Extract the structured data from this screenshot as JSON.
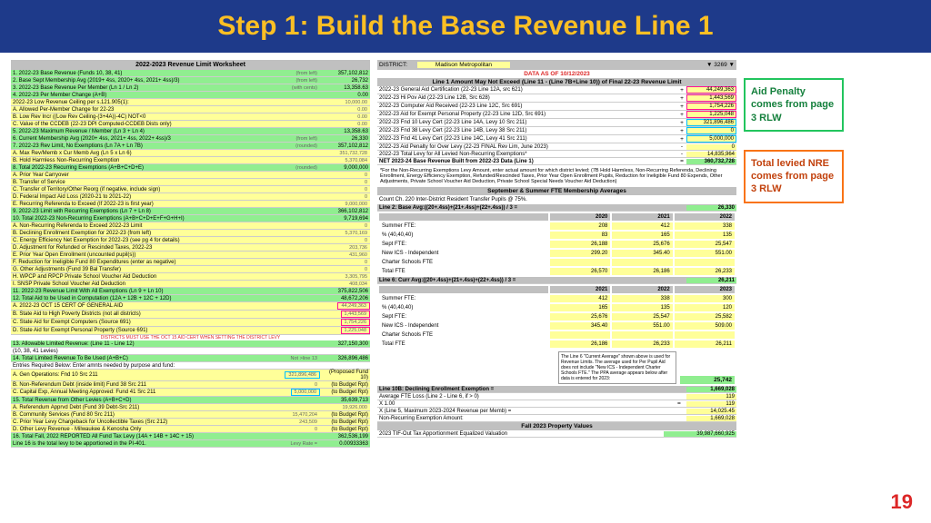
{
  "header": "Step 1: Build the Base Revenue  Line 1",
  "page_num": "19",
  "left": {
    "title": "2022-2023 Revenue Limit Worksheet",
    "rows": [
      {
        "n": "1.",
        "lbl": "2022-23 Base Revenue (Funds 10, 38, 41)",
        "note": "(from left)",
        "val": "357,102,812",
        "bg": "grn"
      },
      {
        "n": "2.",
        "lbl": "Base Sept Membership Avg  (2019+ 4ss, 2020+ 4ss, 2021+ 4ss)/3)",
        "note": "(from left)",
        "val": "26,732",
        "bg": "grn"
      },
      {
        "n": "3.",
        "lbl": "2022-23 Base Revenue Per Member (Ln 1 / Ln 2)",
        "note": "(with cents)",
        "val": "13,358.63",
        "bg": "grn"
      },
      {
        "n": "4.",
        "lbl": "2022-23 Per Member Change   (A+B)",
        "note": "",
        "val": "0.00",
        "bg": "grn"
      },
      {
        "n": "",
        "lbl": "      2022-23 Low Revenue Ceiling per s.121.905(1):",
        "note": "10,000.00",
        "val": "",
        "bg": "ylw"
      },
      {
        "n": "",
        "lbl": "A. Allowed Per-Member Change for 22-23",
        "note": "0.00",
        "val": "",
        "bg": "ylw"
      },
      {
        "n": "",
        "lbl": "B. Low Rev Incr ((Low Rev Ceiling-(3+4A))-4C) NOT<0",
        "note": "0.00",
        "val": "",
        "bg": "ylw"
      },
      {
        "n": "",
        "lbl": "C. Value of the CCDEB (22-23 DPI Computed-CCDEB Dists only)",
        "note": "0.00",
        "val": "",
        "bg": "ylw"
      },
      {
        "n": "5.",
        "lbl": "2022-23 Maximum Revenue / Member (Ln 3 + Ln 4)",
        "note": "",
        "val": "13,358.63",
        "bg": "grn"
      },
      {
        "n": "6.",
        "lbl": "Current Membership Avg  (2020+ 4ss, 2021+ 4ss, 2022+ 4ss)/3",
        "note": "(from left)",
        "val": "26,330",
        "bg": "grn"
      },
      {
        "n": "7.",
        "lbl": "2022-23 Rev Limit, No Exemptions (Ln 7A + Ln 7B)",
        "note": "(rounded)",
        "val": "357,102,812",
        "bg": "grn"
      },
      {
        "n": "",
        "lbl": "A. Max Rev/Memb x Cur Memb Avg (Ln 5 x Ln 6)",
        "note": "351,732,728",
        "val": "",
        "bg": "ylw"
      },
      {
        "n": "",
        "lbl": "B. Hold Harmless Non-Recurring Exemption",
        "note": "5,370,084",
        "val": "",
        "bg": "ylw"
      },
      {
        "n": "8.",
        "lbl": "Total 2022-23 Recurring Exemptions  (A+B+C+D+E)",
        "note": "(rounded)",
        "val": "9,000,000",
        "bg": "grn"
      },
      {
        "n": "",
        "lbl": "A. Prior Year Carryover",
        "note": "0",
        "val": "",
        "bg": "ylw"
      },
      {
        "n": "",
        "lbl": "B. Transfer of Service",
        "note": "0",
        "val": "",
        "bg": "ylw"
      },
      {
        "n": "",
        "lbl": "C. Transfer of Territory/Other Reorg   (if negative, include sign)",
        "note": "0",
        "val": "",
        "bg": "ylw"
      },
      {
        "n": "",
        "lbl": "D. Federal Impact Aid Loss   (2020-21 to 2021-22)",
        "note": "0",
        "val": "",
        "bg": "ylw"
      },
      {
        "n": "",
        "lbl": "E. Recurring Referenda to Exceed  (If 2022-23 is first year)",
        "note": "9,000,000",
        "val": "",
        "bg": "ylw"
      },
      {
        "n": "9.",
        "lbl": "2022-23 Limit with Recurring Exemptions   (Ln 7 + Ln 8)",
        "note": "",
        "val": "366,102,812",
        "bg": "grn"
      },
      {
        "n": "10.",
        "lbl": "Total 2022-23 Non-Recurring Exemptions  (A+B+C+D+E+F+G+H+I)",
        "note": "",
        "val": "9,719,694",
        "bg": "grn"
      },
      {
        "n": "",
        "lbl": "A. Non-Recurring Referenda to Exceed 2022-23 Limit",
        "note": "0",
        "val": "",
        "bg": "ylw"
      },
      {
        "n": "",
        "lbl": "B. Declining Enrollment Exemption for 2022-23 (from left)",
        "note": "5,370,169",
        "val": "",
        "bg": "ylw"
      },
      {
        "n": "",
        "lbl": "C. Energy Efficiency Net Exemption for 2022-23 (see pg 4 for details)",
        "note": "0",
        "val": "",
        "bg": "ylw"
      },
      {
        "n": "",
        "lbl": "D. Adjustment for Refunded or Rescinded Taxes, 2022-23",
        "note": "203,736",
        "val": "",
        "bg": "ylw"
      },
      {
        "n": "",
        "lbl": "E. Prior Year Open Enrollment (uncounted pupil(s))",
        "note": "431,960",
        "val": "",
        "bg": "ylw"
      },
      {
        "n": "",
        "lbl": "F. Reduction for Ineligible Fund 80 Expenditures (enter as negative)",
        "note": "0",
        "val": "",
        "bg": "ylw"
      },
      {
        "n": "",
        "lbl": "G. Other Adjustments (Fund 39 Bal Transfer)",
        "note": "0",
        "val": "",
        "bg": "ylw"
      },
      {
        "n": "",
        "lbl": "H. WPCP and RPCP Private School Voucher Aid Deduction",
        "note": "3,305,795",
        "val": "",
        "bg": "ylw"
      },
      {
        "n": "",
        "lbl": "I. SNSP Private School Voucher Aid Deduction",
        "note": "408,034",
        "val": "",
        "bg": "ylw"
      },
      {
        "n": "11.",
        "lbl": "2022-23 Revenue Limit With All Exemptions     (Ln 9 + Ln 10)",
        "note": "",
        "val": "375,822,506",
        "bg": "grn"
      },
      {
        "n": "12.",
        "lbl": "Total Aid to be Used in Computation (12A + 12B + 12C + 12D)",
        "note": "",
        "val": "48,672,206",
        "bg": "grn"
      },
      {
        "n": "",
        "lbl": "A. 2022-23  OCT 15 CERT OF GENERAL AID",
        "note": "44,249,363",
        "val": "",
        "bg": "ylw",
        "hl": "pink"
      },
      {
        "n": "",
        "lbl": "B. State Aid to High Poverty Districts (not all districts)",
        "note": "1,443,569",
        "val": "",
        "bg": "ylw",
        "hl": "pink"
      },
      {
        "n": "",
        "lbl": "C. State Aid for Exempt Computers (Source 691)",
        "note": "1,754,226",
        "val": "",
        "bg": "ylw",
        "hl": "pink"
      },
      {
        "n": "",
        "lbl": "D. State Aid for Exempt Personal Property (Source 691)",
        "note": "1,225,048",
        "val": "",
        "bg": "ylw",
        "hl": "pink"
      }
    ],
    "redline": "DISTRICTS MUST USE THE OCT 15 AID CERT WHEN SETTING THE DISTRICT LEVY",
    "rows2": [
      {
        "n": "13.",
        "lbl": "Allowable Limited Revenue:  (Line 11 - Line 12)",
        "note": "",
        "val": "327,150,300",
        "bg": "grn"
      },
      {
        "n": "",
        "lbl": "      (10, 38, 41 Levies)",
        "note": "",
        "val": "",
        "bg": ""
      },
      {
        "n": "14.",
        "lbl": "Total Limited Revenue To Be Used  (A+B+C)",
        "note": "Not >line 13",
        "val": "326,896,486",
        "bg": "grn"
      },
      {
        "n": "",
        "lbl": "Entries Required Below:   Enter amnts needed by purpose and fund:",
        "note": "",
        "val": "",
        "bg": ""
      },
      {
        "n": "",
        "lbl": "A. Gen Operations: Fnd 10 Src 211",
        "note": "321,896,486",
        "val": "(Proposed Fund 10)",
        "bg": "ylw",
        "hl": "blue"
      },
      {
        "n": "",
        "lbl": "B. Non-Referendum Debt (inside limit)  Fund 38 Src 211",
        "note": "0",
        "val": "(to Budget Rpt)",
        "bg": "ylw"
      },
      {
        "n": "",
        "lbl": "C. Capital Exp, Annual Meeting Approved:  Fund 41 Src 211",
        "note": "5,000,000",
        "val": "(to Budget Rpt)",
        "bg": "ylw",
        "hl": "blue"
      },
      {
        "n": "15.",
        "lbl": "Total Revenue from Other Levies (A+B+C+D)",
        "note": "",
        "val": "35,639,713",
        "bg": "grn"
      },
      {
        "n": "",
        "lbl": "A. Referendum Apprvd Debt (Fund 39 Debt-Src 211)",
        "note": "19,926,000",
        "val": "",
        "bg": "ylw"
      },
      {
        "n": "",
        "lbl": "B. Community Services (Fund 80 Src 211)",
        "note": "15,470,204",
        "val": "(to Budget Rpt)",
        "bg": "ylw"
      },
      {
        "n": "",
        "lbl": "C. Prior Year Levy Chargeback for Uncollectible Taxes (Src 212)",
        "note": "243,509",
        "val": "(to Budget Rpt)",
        "bg": "ylw"
      },
      {
        "n": "",
        "lbl": "D. Other Levy Revenue - Milwaukee & Kenosha Only",
        "note": "0",
        "val": "(to Budget Rpt)",
        "bg": "ylw"
      },
      {
        "n": "16.",
        "lbl": "Total Fall, 2022 REPORTED All Fund Tax Levy  (14A + 14B + 14C + 15)",
        "note": "",
        "val": "362,536,199",
        "bg": "grn"
      },
      {
        "n": "",
        "lbl": "Line 16 is the total levy to be apportioned in the PI-401.",
        "note": "Levy Rate =",
        "val": "0.00933363",
        "bg": "grn"
      }
    ]
  },
  "right": {
    "district": "DISTRICT:",
    "district_name": "Madison Metropolitan",
    "district_code": "3269",
    "data_as": "DATA AS OF 10/12/2023",
    "line1_hdr": "Line 1 Amount May Not Exceed (Line 11 - (Line 7B+Line 10)) of Final 22-23 Revenue Limit",
    "aid_rows": [
      {
        "lbl": "2022-23 General Aid Certification (22-23 Line 12A, src 621)",
        "op": "+",
        "val": "44,249,363",
        "hl": "pink"
      },
      {
        "lbl": "2022-23 Hi Pov Aid (22-23 Line 12B, Src 628)",
        "op": "+",
        "val": "1,443,569",
        "hl": "pink"
      },
      {
        "lbl": "2022-23 Computer Aid Received (22-23 Line 12C, Src 691)",
        "op": "+",
        "val": "1,754,226",
        "hl": "pink"
      },
      {
        "lbl": "2022-23 Aid for Exempt Personal Property (22-23 Line 12D, Src 691)",
        "op": "+",
        "val": "1,225,048",
        "hl": "pink"
      },
      {
        "lbl": "2022-23 Fnd 10 Levy Cert (22-23 Line 14A, Levy 10 Src 211)",
        "op": "+",
        "val": "321,896,486",
        "hl": "blue"
      },
      {
        "lbl": "2022-23 Fnd 38 Levy Cert (22-23 Line 14B, Levy 38 Src 211)",
        "op": "+",
        "val": "0",
        "hl": "blue"
      },
      {
        "lbl": "2022-23 Fnd 41 Levy Cert (22-23 Line 14C, Levy 41 Src 211)",
        "op": "+",
        "val": "5,000,000",
        "hl": "blue"
      },
      {
        "lbl": "2022-23 Aid Penalty for Over Levy (22-23 FINAL Rev Lim, June 2023)",
        "op": "-",
        "val": "0"
      },
      {
        "lbl": "2022-23 Total Levy for All Levied Non-Recurring Exemptions*",
        "op": "-",
        "val": "14,835,964"
      },
      {
        "lbl": "NET 2023-24 Base Revenue Built from 2022-23 Data (Line 1)",
        "op": "=",
        "val": "360,732,728",
        "bold": true
      }
    ],
    "footnote": "*For the Non-Recurring Exemptions Levy Amount, enter actual amount for which district levied; (7B Hold Harmless, Non-Recurring Referenda, Declining Enrollment, Energy Efficiency Exemption, Refunded/Rescinded Taxes, Prior Year Open Enrollment Pupils, Reduction for Ineligible Fund 80 Expends, Other Adjustments, Private School Voucher Aid Deduction, Private School Special Needs Voucher Aid Deduction)",
    "sept_hdr": "September & Summer FTE Membership Averages",
    "count_lbl": "Count Ch. 220 Inter-District Resident Transfer Pupils @ 75%.",
    "line2": {
      "hdr": "Line 2: Base Avg:((20+.4ss)+(21+.4ss)+(22+.4ss)) / 3 =",
      "total": "26,330",
      "years": [
        "2020",
        "2021",
        "2022"
      ],
      "rows": [
        {
          "lbl": "Summer FTE:",
          "v": [
            "208",
            "412",
            "338"
          ]
        },
        {
          "lbl": "% (40,40,40)",
          "v": [
            "83",
            "165",
            "135"
          ]
        },
        {
          "lbl": "Sept FTE:",
          "v": [
            "26,188",
            "25,676",
            "25,547"
          ]
        },
        {
          "lbl": "New ICS - Independent",
          "v": [
            "299.20",
            "345.40",
            "551.00"
          ]
        },
        {
          "lbl": "Charter Schools FTE",
          "v": [
            "",
            "",
            ""
          ]
        },
        {
          "lbl": "Total FTE",
          "v": [
            "26,570",
            "26,186",
            "26,233"
          ]
        }
      ]
    },
    "line6": {
      "hdr": "Line 6: Curr Avg:((20+.4ss)+(21+.4ss)+(22+.4ss)) / 3 =",
      "total": "26,211",
      "years": [
        "2021",
        "2022",
        "2023"
      ],
      "rows": [
        {
          "lbl": "Summer FTE:",
          "v": [
            "412",
            "338",
            "300"
          ]
        },
        {
          "lbl": "% (40,40,40)",
          "v": [
            "165",
            "135",
            "120"
          ]
        },
        {
          "lbl": "Sept FTE:",
          "v": [
            "25,676",
            "25,547",
            "25,582"
          ]
        },
        {
          "lbl": "New ICS - Independent",
          "v": [
            "345.40",
            "551.00",
            "509.00"
          ]
        },
        {
          "lbl": "Charter Schools FTE",
          "v": [
            "",
            "",
            ""
          ]
        },
        {
          "lbl": "Total FTE",
          "v": [
            "26,186",
            "26,233",
            "26,211"
          ]
        }
      ]
    },
    "info_box": "The Line 6 \"Current Average\" shown above is used for Revenue Limits. The average used for Per Pupil Aid does not include \"New ICS - Independent Charter Schools FTE.\" The PPA average appears below after data is entered for 2023:",
    "ppa_val": "25,742",
    "line10b": {
      "hdr": "Line 10B: Declining Enrollment Exemption =",
      "val": "1,669,028",
      "rows": [
        {
          "lbl": "Average FTE Loss (Line 2 - Line 6, if > 0)",
          "val": "119"
        },
        {
          "lbl": "X  1.00",
          "val": "119",
          "op": "="
        },
        {
          "lbl": "X (Line 5, Maximum 2023-2024 Revenue per Memb) =",
          "val": "14,025.45"
        },
        {
          "lbl": "Non-Recurring Exemption Amount:",
          "val": "1,669,028"
        }
      ]
    },
    "fall2023": "Fall 2023 Property Values",
    "tif": "2023 TIF-Out Tax Apportionment Equalized Valuation",
    "tif_val": "39,987,660,925"
  },
  "notes": {
    "aid": "Aid Penalty comes from page 3 RLW",
    "nre": "Total levied NRE comes from page 3 RLW"
  }
}
